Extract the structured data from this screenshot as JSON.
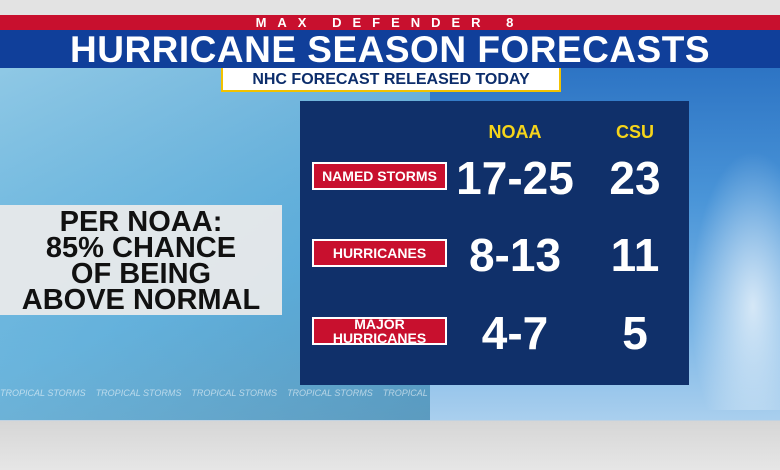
{
  "header": {
    "brand": "MAX DEFENDER 8",
    "title": "HURRICANE SEASON FORECASTS",
    "subtitle": "NHC FORECAST RELEASED TODAY"
  },
  "callout": {
    "lines": [
      "PER NOAA:",
      "85% CHANCE",
      "OF BEING",
      "ABOVE NORMAL"
    ]
  },
  "table": {
    "columns": [
      "NOAA",
      "CSU"
    ],
    "rows": [
      {
        "label": "NAMED STORMS",
        "values": [
          "17-25",
          23
        ]
      },
      {
        "label": "HURRICANES",
        "values": [
          "8-13",
          11
        ]
      },
      {
        "label": "MAJOR HURRICANES",
        "values": [
          "4-7",
          5
        ]
      }
    ]
  },
  "background_text": "TROPICAL STORMS"
}
